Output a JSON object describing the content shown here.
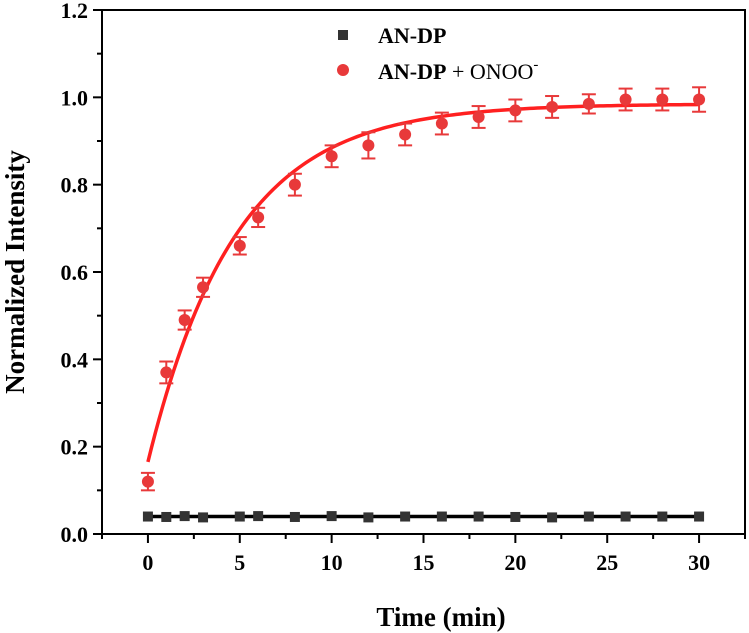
{
  "chart_data": {
    "type": "scatter",
    "xlabel": "Time (min)",
    "ylabel": "Normalized Intensity",
    "xlim": [
      -2.5,
      32.5
    ],
    "ylim": [
      0.0,
      1.2
    ],
    "xticks": [
      0,
      5,
      10,
      15,
      20,
      25,
      30
    ],
    "yticks": [
      0.0,
      0.2,
      0.4,
      0.6,
      0.8,
      1.0,
      1.2
    ],
    "xtick_labels": [
      "0",
      "5",
      "10",
      "15",
      "20",
      "25",
      "30"
    ],
    "ytick_labels": [
      "0.0",
      "0.2",
      "0.4",
      "0.6",
      "0.8",
      "1.0",
      "1.2"
    ],
    "grid": false,
    "legend_position": "top-center",
    "series": [
      {
        "name": "AN-DP",
        "legend_bold": "AN-DP",
        "legend_plain": "",
        "legend_sup": "",
        "marker": "square",
        "color": "#333333",
        "x": [
          0,
          1,
          2,
          3,
          5,
          6,
          8,
          10,
          12,
          14,
          16,
          18,
          20,
          22,
          24,
          26,
          28,
          30
        ],
        "y": [
          0.04,
          0.039,
          0.041,
          0.038,
          0.04,
          0.041,
          0.039,
          0.041,
          0.038,
          0.04,
          0.04,
          0.04,
          0.039,
          0.038,
          0.04,
          0.04,
          0.04,
          0.04
        ],
        "error": [
          0.005,
          0.005,
          0.005,
          0.005,
          0.005,
          0.005,
          0.005,
          0.005,
          0.005,
          0.005,
          0.005,
          0.005,
          0.005,
          0.005,
          0.005,
          0.005,
          0.005,
          0.005
        ],
        "fit": {
          "type": "constant",
          "value": 0.04,
          "color": "#000000"
        }
      },
      {
        "name": "AN-DP + ONOO-",
        "legend_bold": "AN-DP",
        "legend_plain": " + ONOO",
        "legend_sup": "-",
        "marker": "circle",
        "color": "#e8393a",
        "x": [
          0,
          1,
          2,
          3,
          5,
          6,
          8,
          10,
          12,
          14,
          16,
          18,
          20,
          22,
          24,
          26,
          28,
          30
        ],
        "y": [
          0.12,
          0.37,
          0.49,
          0.565,
          0.66,
          0.725,
          0.8,
          0.865,
          0.89,
          0.915,
          0.94,
          0.955,
          0.97,
          0.978,
          0.985,
          0.995,
          0.995,
          0.995
        ],
        "error": [
          0.02,
          0.025,
          0.022,
          0.022,
          0.02,
          0.022,
          0.025,
          0.025,
          0.03,
          0.025,
          0.025,
          0.025,
          0.025,
          0.025,
          0.022,
          0.025,
          0.025,
          0.028
        ],
        "fit": {
          "type": "exponential",
          "y0": 0.165,
          "ymax": 0.985,
          "k": 0.21,
          "color": "#ff2020"
        }
      }
    ]
  }
}
